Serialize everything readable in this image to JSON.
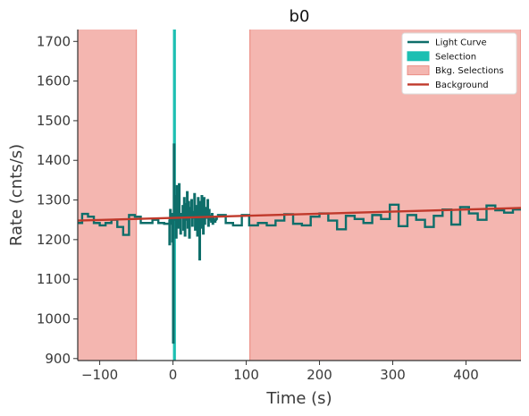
{
  "chart_data": {
    "type": "line",
    "title": "b0",
    "xlabel": "Time (s)",
    "ylabel": "Rate (cnts/s)",
    "xlim": [
      -130,
      475
    ],
    "ylim": [
      895,
      1730
    ],
    "xticks": [
      -100,
      0,
      100,
      200,
      300,
      400
    ],
    "yticks": [
      900,
      1000,
      1100,
      1200,
      1300,
      1400,
      1500,
      1600,
      1700
    ],
    "grid": false,
    "legend_position": "top-right",
    "colors": {
      "light_curve": "#0e6e6a",
      "selection": "#1dbfb2",
      "bkg_selection_fill": "#f4b6b0",
      "bkg_selection_edge": "#ec8f86",
      "background": "#c0392b"
    },
    "legend": [
      {
        "key": "light_curve",
        "label": "Light Curve",
        "style": "line"
      },
      {
        "key": "selection",
        "label": "Selection",
        "style": "patch"
      },
      {
        "key": "bkg_selection",
        "label": "Bkg. Selections",
        "style": "patch"
      },
      {
        "key": "background",
        "label": "Background",
        "style": "line"
      }
    ],
    "selection": {
      "x": [
        0,
        4
      ]
    },
    "bkg_selections": [
      {
        "x": [
          -130,
          -50
        ]
      },
      {
        "x": [
          105,
          475
        ]
      }
    ],
    "background": {
      "x": [
        -130,
        475
      ],
      "y": [
        1248,
        1280
      ]
    },
    "light_curve": {
      "step_series": [
        {
          "x": [
            -130,
            -124,
            -116,
            -108,
            -100,
            -92,
            -84,
            -76,
            -68,
            -60,
            -52,
            -44,
            -36,
            -28,
            -20,
            -12,
            -4
          ],
          "y": [
            1242,
            1265,
            1258,
            1242,
            1236,
            1242,
            1250,
            1232,
            1212,
            1262,
            1258,
            1242,
            1242,
            1250,
            1242,
            1240,
            1244
          ]
        },
        {
          "x": [
            60,
            72,
            82,
            94,
            104,
            116,
            128,
            140,
            152,
            164,
            176,
            188,
            200,
            212,
            224,
            236,
            248,
            260,
            272,
            284,
            296,
            308,
            320,
            332,
            344,
            356,
            368,
            380,
            392,
            404,
            416,
            428,
            440,
            452,
            464,
            475
          ],
          "y": [
            1262,
            1242,
            1236,
            1262,
            1236,
            1242,
            1236,
            1248,
            1264,
            1240,
            1236,
            1258,
            1266,
            1248,
            1226,
            1260,
            1252,
            1242,
            1262,
            1252,
            1288,
            1234,
            1262,
            1250,
            1232,
            1260,
            1276,
            1238,
            1282,
            1266,
            1250,
            1286,
            1274,
            1268,
            1276,
            1280
          ]
        }
      ],
      "burst": {
        "x": [
          -6,
          -5,
          -4,
          -3,
          -2,
          -1,
          0,
          1,
          2,
          3,
          4,
          5,
          6,
          7,
          8,
          9,
          10,
          11,
          12,
          13,
          14,
          15,
          16,
          17,
          18,
          19,
          20,
          21,
          22,
          23,
          24,
          25,
          26,
          27,
          28,
          29,
          30,
          31,
          32,
          33,
          34,
          35,
          36,
          37,
          38,
          39,
          40,
          41,
          42,
          43,
          44,
          45,
          46,
          47,
          48,
          49,
          50,
          51,
          52,
          53,
          54,
          55,
          56,
          57,
          58,
          59,
          60
        ],
        "y": [
          1250,
          1188,
          1275,
          1240,
          1265,
          1195,
          940,
          1440,
          1250,
          1310,
          1205,
          1335,
          1260,
          1230,
          1340,
          1240,
          1215,
          1265,
          1260,
          1285,
          1225,
          1305,
          1210,
          1290,
          1250,
          1320,
          1230,
          1295,
          1205,
          1280,
          1260,
          1300,
          1235,
          1270,
          1255,
          1315,
          1225,
          1285,
          1245,
          1210,
          1305,
          1265,
          1150,
          1295,
          1230,
          1310,
          1250,
          1215,
          1305,
          1240,
          1270,
          1280,
          1255,
          1300,
          1235,
          1275,
          1260,
          1250,
          1245,
          1265,
          1240,
          1255,
          1250,
          1245,
          1250,
          1255,
          1250
        ]
      }
    }
  }
}
